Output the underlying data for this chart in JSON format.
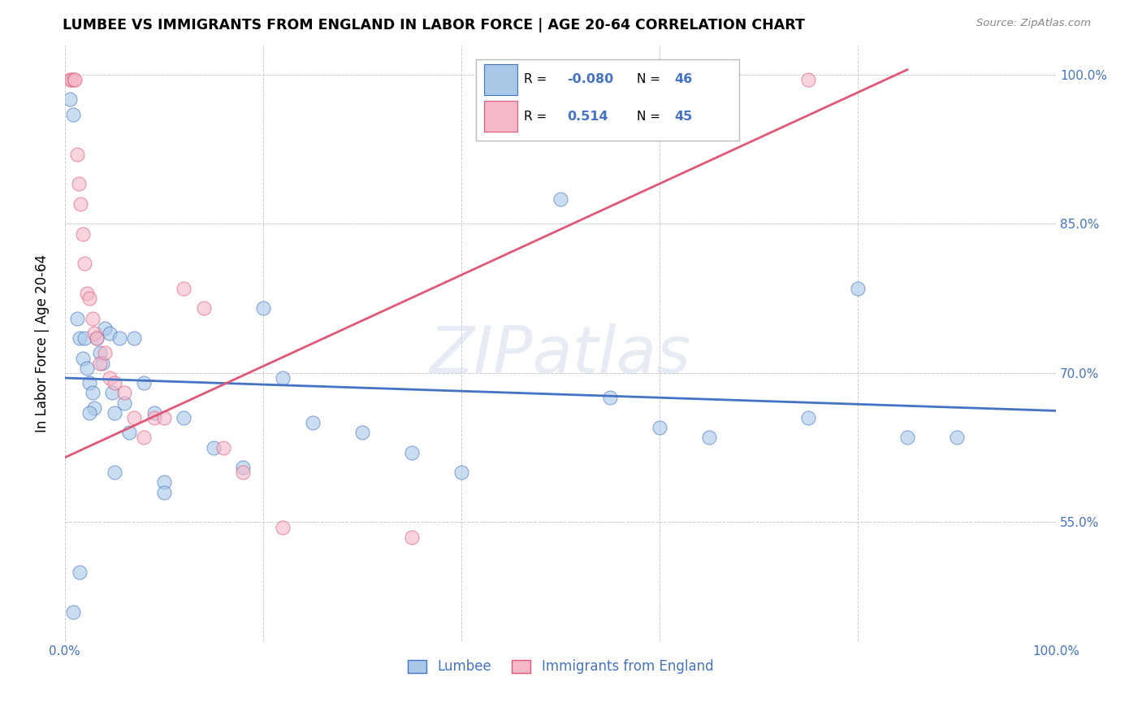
{
  "title": "LUMBEE VS IMMIGRANTS FROM ENGLAND IN LABOR FORCE | AGE 20-64 CORRELATION CHART",
  "source": "Source: ZipAtlas.com",
  "ylabel": "In Labor Force | Age 20-64",
  "xlim": [
    0.0,
    1.0
  ],
  "ylim": [
    0.43,
    1.03
  ],
  "color_blue": "#a8c8e8",
  "color_pink": "#f4b8c8",
  "line_blue": "#4472c4",
  "line_pink": "#e05878",
  "watermark": "ZIPatlas",
  "blue_scatter_x": [
    0.005,
    0.008,
    0.012,
    0.015,
    0.018,
    0.02,
    0.022,
    0.025,
    0.028,
    0.03,
    0.032,
    0.035,
    0.038,
    0.04,
    0.045,
    0.048,
    0.05,
    0.055,
    0.06,
    0.065,
    0.07,
    0.08,
    0.09,
    0.1,
    0.12,
    0.15,
    0.18,
    0.2,
    0.22,
    0.25,
    0.3,
    0.35,
    0.4,
    0.5,
    0.55,
    0.6,
    0.65,
    0.75,
    0.8,
    0.85,
    0.9,
    0.008,
    0.015,
    0.025,
    0.05,
    0.1
  ],
  "blue_scatter_y": [
    0.975,
    0.96,
    0.755,
    0.735,
    0.715,
    0.735,
    0.705,
    0.69,
    0.68,
    0.665,
    0.735,
    0.72,
    0.71,
    0.745,
    0.74,
    0.68,
    0.66,
    0.735,
    0.67,
    0.64,
    0.735,
    0.69,
    0.66,
    0.59,
    0.655,
    0.625,
    0.605,
    0.765,
    0.695,
    0.65,
    0.64,
    0.62,
    0.6,
    0.875,
    0.675,
    0.645,
    0.635,
    0.655,
    0.785,
    0.635,
    0.635,
    0.46,
    0.5,
    0.66,
    0.6,
    0.58
  ],
  "pink_scatter_x": [
    0.005,
    0.007,
    0.009,
    0.01,
    0.012,
    0.014,
    0.016,
    0.018,
    0.02,
    0.022,
    0.025,
    0.028,
    0.03,
    0.032,
    0.035,
    0.04,
    0.045,
    0.05,
    0.06,
    0.07,
    0.08,
    0.09,
    0.1,
    0.12,
    0.14,
    0.16,
    0.18,
    0.22,
    0.35,
    0.75
  ],
  "pink_scatter_y": [
    0.995,
    0.995,
    0.995,
    0.995,
    0.92,
    0.89,
    0.87,
    0.84,
    0.81,
    0.78,
    0.775,
    0.755,
    0.74,
    0.735,
    0.71,
    0.72,
    0.695,
    0.69,
    0.68,
    0.655,
    0.635,
    0.655,
    0.655,
    0.785,
    0.765,
    0.625,
    0.6,
    0.545,
    0.535,
    0.995
  ],
  "blue_line_x": [
    0.0,
    1.0
  ],
  "blue_line_y": [
    0.695,
    0.662
  ],
  "pink_line_x": [
    0.0,
    0.85
  ],
  "pink_line_y": [
    0.615,
    1.005
  ]
}
